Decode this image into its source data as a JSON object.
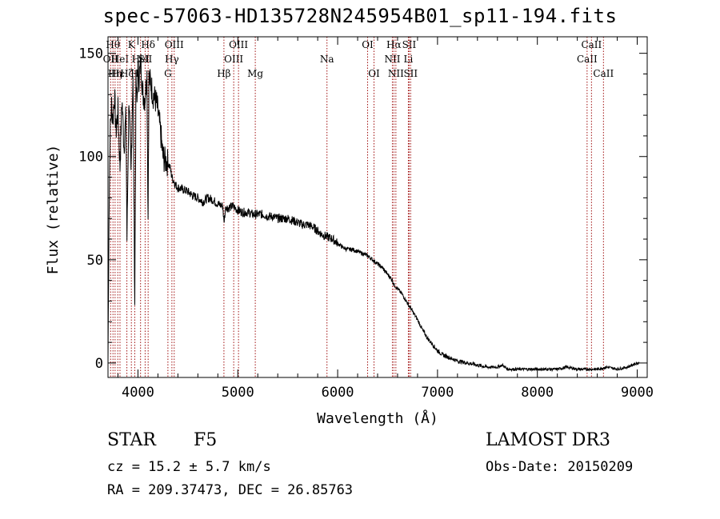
{
  "chart_data": {
    "type": "line",
    "title": "spec-57063-HD135728N245954B01_sp11-194.fits",
    "xlabel": "Wavelength (Å)",
    "ylabel": "Flux (relative)",
    "xlim": [
      3700,
      9100
    ],
    "ylim": [
      -7,
      158
    ],
    "xticks": [
      4000,
      5000,
      6000,
      7000,
      8000,
      9000
    ],
    "yticks": [
      0,
      50,
      100,
      150
    ],
    "xtick_labels": [
      "4000",
      "5000",
      "6000",
      "7000",
      "8000",
      "9000"
    ],
    "ytick_labels": [
      "0",
      "50",
      "100",
      "150"
    ],
    "series": [
      {
        "name": "flux",
        "x": [
          3700,
          3710,
          3720,
          3735,
          3750,
          3765,
          3780,
          3800,
          3820,
          3840,
          3860,
          3880,
          3890,
          3910,
          3930,
          3950,
          3968,
          3980,
          3990,
          4000,
          4010,
          4030,
          4050,
          4070,
          4090,
          4101,
          4110,
          4130,
          4150,
          4170,
          4190,
          4210,
          4230,
          4250,
          4270,
          4300,
          4320,
          4340,
          4360,
          4380,
          4400,
          4450,
          4500,
          4550,
          4600,
          4650,
          4700,
          4750,
          4800,
          4850,
          4861,
          4880,
          4900,
          4950,
          5000,
          5050,
          5100,
          5150,
          5200,
          5250,
          5300,
          5350,
          5400,
          5450,
          5500,
          5550,
          5600,
          5650,
          5700,
          5750,
          5800,
          5850,
          5900,
          5950,
          6000,
          6050,
          6100,
          6150,
          6200,
          6250,
          6300,
          6350,
          6400,
          6450,
          6500,
          6550,
          6563,
          6600,
          6650,
          6700,
          6750,
          6800,
          6850,
          6900,
          6950,
          7000,
          7050,
          7100,
          7150,
          7200,
          7300,
          7400,
          7500,
          7600,
          7650,
          7700,
          7800,
          7900,
          8000,
          8100,
          8200,
          8300,
          8400,
          8500,
          8600,
          8700,
          8800,
          8900,
          8950,
          9000,
          9020
        ],
        "y": [
          0,
          70,
          110,
          125,
          118,
          130,
          112,
          122,
          95,
          128,
          105,
          120,
          60,
          130,
          90,
          140,
          30,
          135,
          125,
          142,
          138,
          145,
          130,
          128,
          140,
          70,
          138,
          135,
          130,
          128,
          125,
          118,
          110,
          100,
          98,
          97,
          95,
          90,
          88,
          86,
          85,
          84,
          83,
          81,
          80,
          78,
          80,
          79,
          77,
          76,
          68,
          76,
          75,
          76,
          74,
          73,
          73,
          72,
          72,
          72,
          71,
          71,
          70,
          70,
          70,
          69,
          68,
          67,
          67,
          66,
          64,
          62,
          61,
          60,
          58,
          56,
          55,
          55,
          54,
          53,
          52,
          50,
          48,
          46,
          43,
          40,
          38,
          36,
          33,
          29,
          25,
          21,
          16,
          12,
          9,
          6,
          4,
          3,
          2,
          1,
          0,
          -1,
          -2,
          -2,
          -1,
          -3,
          -3,
          -3,
          -3,
          -3,
          -3,
          -2,
          -3,
          -3,
          -3,
          -2,
          -3,
          -2,
          -1,
          0,
          0
        ]
      }
    ],
    "lines": [
      {
        "wave": 3726,
        "label": "OII",
        "row": 1
      },
      {
        "wave": 3750,
        "label": "Hθ",
        "row": 0
      },
      {
        "wave": 3771,
        "label": "Hη",
        "row": 2
      },
      {
        "wave": 3798,
        "label": "Hε",
        "row": 2
      },
      {
        "wave": 3820,
        "label": "HeI",
        "row": 1
      },
      {
        "wave": 3889,
        "label": "Hζ",
        "row": 2
      },
      {
        "wave": 3934,
        "label": "K",
        "row": 0
      },
      {
        "wave": 3968,
        "label": "H",
        "row": 2
      },
      {
        "wave": 4026,
        "label": "HeI",
        "row": 1
      },
      {
        "wave": 4072,
        "label": "SII",
        "row": 1
      },
      {
        "wave": 4102,
        "label": "Hδ",
        "row": 0
      },
      {
        "wave": 4300,
        "label": "G",
        "row": 2
      },
      {
        "wave": 4340,
        "label": "Hγ",
        "row": 1
      },
      {
        "wave": 4363,
        "label": "OIII",
        "row": 0
      },
      {
        "wave": 4861,
        "label": "Hβ",
        "row": 2
      },
      {
        "wave": 4959,
        "label": "OIII",
        "row": 1
      },
      {
        "wave": 5007,
        "label": "OIII",
        "row": 0
      },
      {
        "wave": 5175,
        "label": "Mg",
        "row": 2
      },
      {
        "wave": 5893,
        "label": "Na",
        "row": 1
      },
      {
        "wave": 6300,
        "label": "OI",
        "row": 0
      },
      {
        "wave": 6364,
        "label": "OI",
        "row": 2
      },
      {
        "wave": 6548,
        "label": "NII",
        "row": 1
      },
      {
        "wave": 6563,
        "label": "Hα",
        "row": 0
      },
      {
        "wave": 6583,
        "label": "NII",
        "row": 2
      },
      {
        "wave": 6708,
        "label": "Li",
        "row": 1
      },
      {
        "wave": 6716,
        "label": "SII",
        "row": 0
      },
      {
        "wave": 6731,
        "label": "SII",
        "row": 2
      },
      {
        "wave": 8498,
        "label": "CaII",
        "row": 1
      },
      {
        "wave": 8542,
        "label": "CaII",
        "row": 0
      },
      {
        "wave": 8662,
        "label": "CaII",
        "row": 2
      }
    ]
  },
  "info": {
    "object_type": "STAR",
    "subclass": "F5",
    "survey": "LAMOST DR3",
    "cz": "cz = 15.2 ± 5.7 km/s",
    "obs_date": "Obs-Date: 20150209",
    "radec": "RA = 209.37473, DEC =  26.85763"
  },
  "colors": {
    "line_marker": "#a01010",
    "spectrum": "#000000"
  }
}
